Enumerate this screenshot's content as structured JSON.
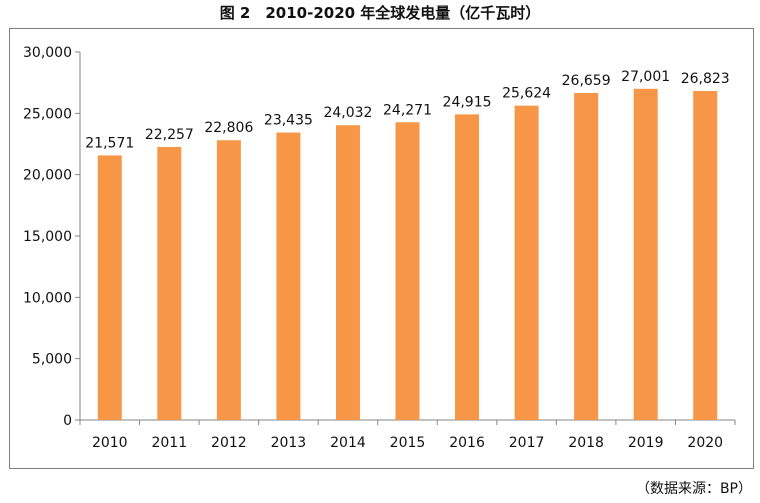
{
  "chart_data": {
    "type": "bar",
    "title": "图 2　2010-2020 年全球发电量（亿千瓦时）",
    "categories": [
      "2010",
      "2011",
      "2012",
      "2013",
      "2014",
      "2015",
      "2016",
      "2017",
      "2018",
      "2019",
      "2020"
    ],
    "values": [
      21571,
      22257,
      22806,
      23435,
      24032,
      24271,
      24915,
      25624,
      26659,
      27001,
      26823
    ],
    "data_labels": [
      "21,571",
      "22,257",
      "22,806",
      "23,435",
      "24,032",
      "24,271",
      "24,915",
      "25,624",
      "26,659",
      "27,001",
      "26,823"
    ],
    "yticks": [
      "0",
      "5,000",
      "10,000",
      "15,000",
      "20,000",
      "25,000",
      "30,000"
    ],
    "ytick_values": [
      0,
      5000,
      10000,
      15000,
      20000,
      25000,
      30000
    ],
    "ylim": [
      0,
      30000
    ],
    "xlabel": "",
    "ylabel": "",
    "grid": false,
    "legend": "none",
    "bar_color": "#F79646",
    "source": "（数据来源：BP）"
  }
}
